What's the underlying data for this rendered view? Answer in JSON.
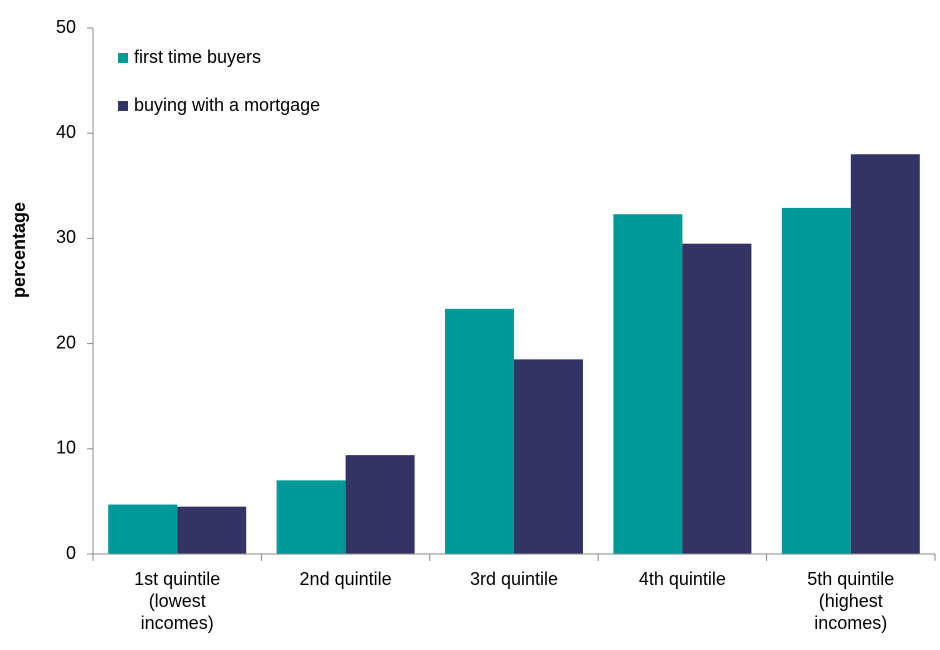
{
  "chart_data": {
    "type": "bar",
    "y_label": "percentage",
    "categories": [
      "1st quintile\n(lowest\nincomes)",
      "2nd quintile",
      "3rd quintile",
      "4th quintile",
      "5th quintile\n(highest\nincomes)"
    ],
    "series": [
      {
        "name": "first time buyers",
        "color": "#009999",
        "values": [
          4.7,
          7.0,
          23.3,
          32.3,
          32.9
        ]
      },
      {
        "name": "buying with a mortgage",
        "color": "#333366",
        "values": [
          4.5,
          9.4,
          18.5,
          29.5,
          38.0
        ]
      }
    ],
    "ylim": [
      0,
      50
    ],
    "yticks": [
      0,
      10,
      20,
      30,
      40,
      50
    ],
    "grid": false,
    "legend": "top-left"
  }
}
